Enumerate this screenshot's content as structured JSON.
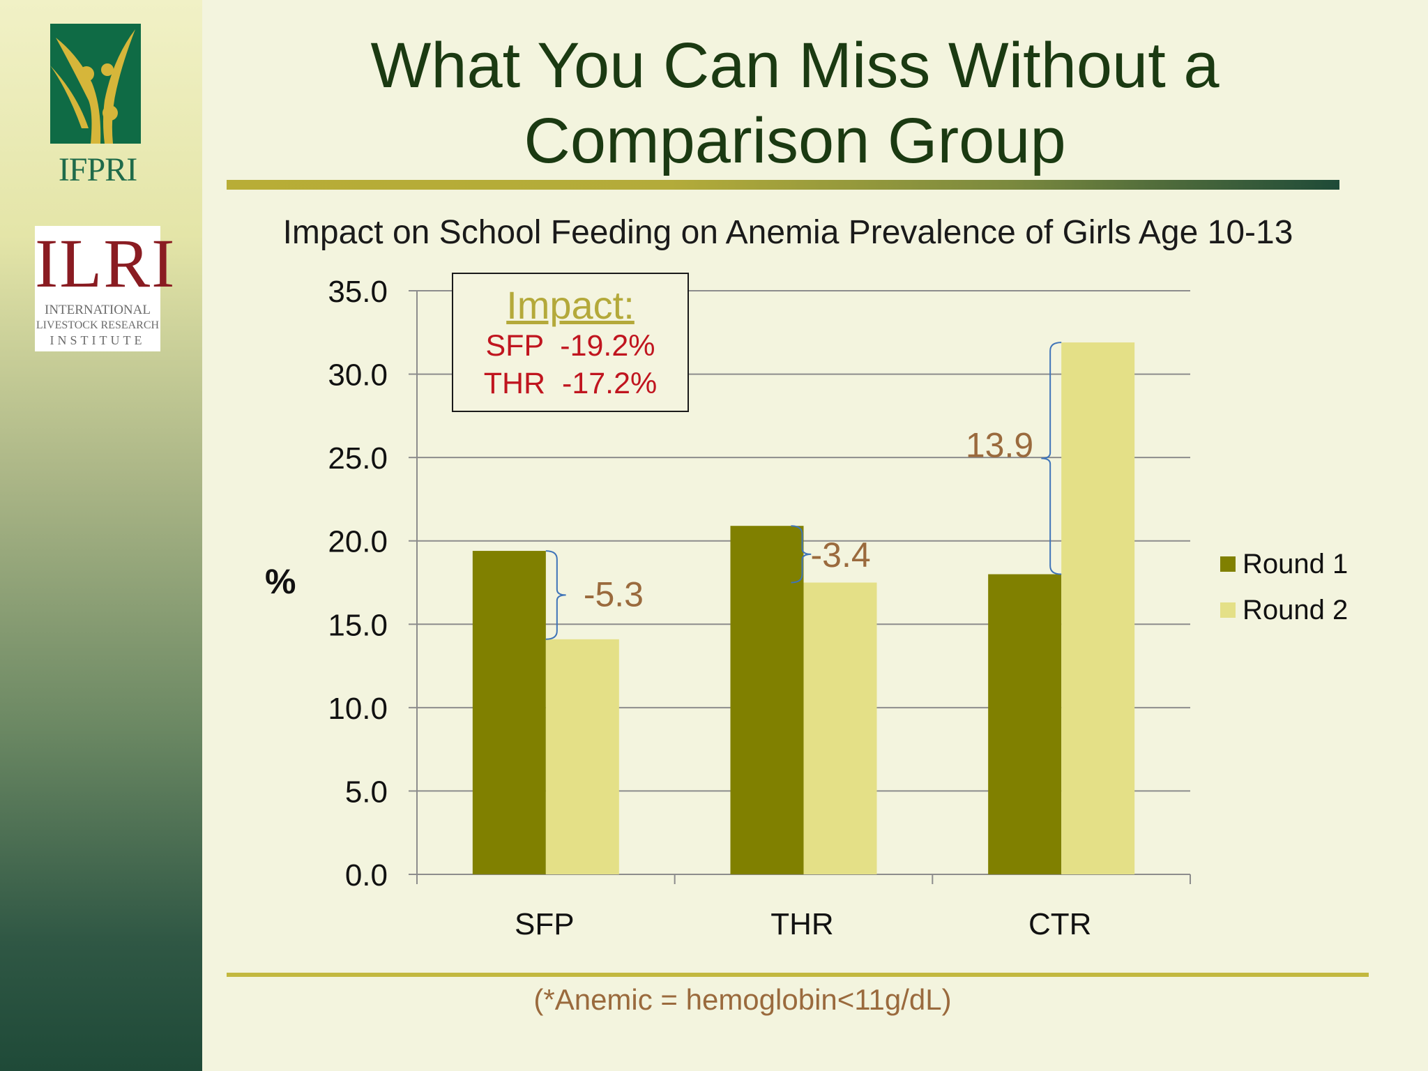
{
  "header": {
    "title_line1": "What You Can Miss Without a",
    "title_line2": "Comparison Group"
  },
  "logos": {
    "ifpri_text": "IFPRI",
    "ilri_name": "ILRI",
    "ilri_line1": "INTERNATIONAL",
    "ilri_line2": "LIVESTOCK RESEARCH",
    "ilri_line3": "INSTITUTE"
  },
  "impact_box": {
    "title": "Impact:",
    "line1": "SFP  -19.2%",
    "line2": "THR  -17.2%"
  },
  "footnote": "(*Anemic = hemoglobin<11g/dL)",
  "colors": {
    "round1": "#808000",
    "round2": "#e4e087",
    "brace": "#3f74b8",
    "annotation": "#9a6a3d",
    "impact_red": "#c0151f"
  },
  "chart_data": {
    "type": "bar",
    "title": "Impact on School Feeding on Anemia Prevalence of Girls Age 10-13",
    "xlabel": "",
    "ylabel": "%",
    "categories": [
      "SFP",
      "THR",
      "CTR"
    ],
    "series": [
      {
        "name": "Round 1",
        "values": [
          19.4,
          20.9,
          18.0
        ]
      },
      {
        "name": "Round 2",
        "values": [
          14.1,
          17.5,
          31.9
        ]
      }
    ],
    "ylim": [
      0,
      35
    ],
    "yticks": [
      "0.0",
      "5.0",
      "10.0",
      "15.0",
      "20.0",
      "25.0",
      "30.0",
      "35.0"
    ],
    "grid": true,
    "legend": "right",
    "annotations": [
      "-5.3",
      "-3.4",
      "13.9"
    ]
  }
}
